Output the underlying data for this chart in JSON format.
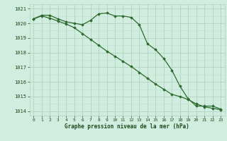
{
  "line1": {
    "x": [
      0,
      1,
      2,
      3,
      4,
      5,
      6,
      7,
      8,
      9,
      10,
      11,
      12,
      13,
      14,
      15,
      16,
      17,
      18,
      19,
      20,
      21,
      22,
      23
    ],
    "y": [
      1020.3,
      1020.55,
      1020.55,
      1020.3,
      1020.1,
      1020.0,
      1019.9,
      1020.2,
      1020.65,
      1020.7,
      1020.5,
      1020.5,
      1020.4,
      1019.9,
      1018.6,
      1018.2,
      1017.6,
      1016.8,
      1015.7,
      1014.85,
      1014.35,
      1014.35,
      1014.35,
      1014.15
    ]
  },
  "line2": {
    "x": [
      0,
      1,
      2,
      3,
      4,
      5,
      6,
      7,
      8,
      9,
      10,
      11,
      12,
      13,
      14,
      15,
      16,
      17,
      18,
      19,
      20,
      21,
      22,
      23
    ],
    "y": [
      1020.3,
      1020.5,
      1020.35,
      1020.15,
      1019.95,
      1019.7,
      1019.3,
      1018.9,
      1018.5,
      1018.1,
      1017.75,
      1017.4,
      1017.05,
      1016.65,
      1016.25,
      1015.85,
      1015.5,
      1015.15,
      1015.0,
      1014.8,
      1014.5,
      1014.3,
      1014.2,
      1014.1
    ]
  },
  "ylim": [
    1013.7,
    1021.3
  ],
  "yticks": [
    1014,
    1015,
    1016,
    1017,
    1018,
    1019,
    1020,
    1021
  ],
  "xticks": [
    0,
    1,
    2,
    3,
    4,
    5,
    6,
    7,
    8,
    9,
    10,
    11,
    12,
    13,
    14,
    15,
    16,
    17,
    18,
    19,
    20,
    21,
    22,
    23
  ],
  "xlabel": "Graphe pression niveau de la mer (hPa)",
  "line_color": "#2d6a2d",
  "bg_color": "#d0ede0",
  "grid_color_major": "#b0d4c0",
  "grid_color_minor": "#c0e0cc",
  "text_color": "#1a4a1a",
  "marker": "D",
  "marker_size": 1.8,
  "line_width": 0.9
}
